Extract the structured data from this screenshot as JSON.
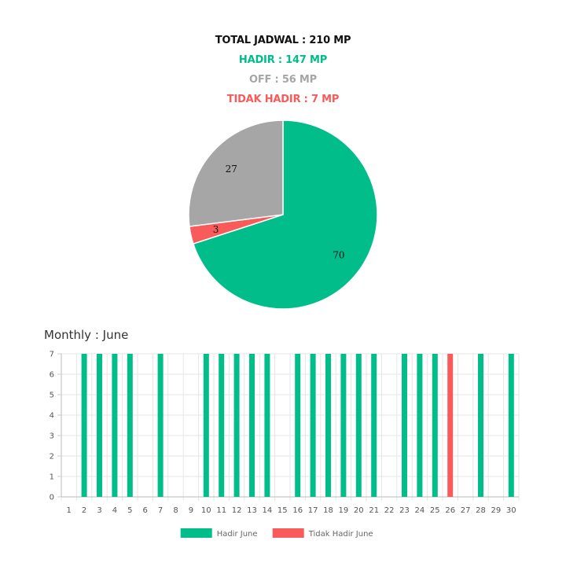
{
  "summary": {
    "total": "TOTAL JADWAL : 210 MP",
    "hadir": "HADIR : 147 MP",
    "off": "OFF : 56 MP",
    "tidak_hadir": "TIDAK HADIR : 7 MP"
  },
  "colors": {
    "hadir": "#00bd8a",
    "off": "#a6a6a6",
    "tidak_hadir": "#f95b5b"
  },
  "bar_title": "Monthly : June",
  "chart_data": [
    {
      "type": "pie",
      "start_angle_deg": 0,
      "slices": [
        {
          "label": "70",
          "value": 70,
          "color": "#00bd8a"
        },
        {
          "label": "3",
          "value": 3,
          "color": "#f95b5b"
        },
        {
          "label": "27",
          "value": 27,
          "color": "#a6a6a6"
        }
      ]
    },
    {
      "type": "bar",
      "title": "Monthly : June",
      "categories": [
        "1",
        "2",
        "3",
        "4",
        "5",
        "6",
        "7",
        "8",
        "9",
        "10",
        "11",
        "12",
        "13",
        "14",
        "15",
        "16",
        "17",
        "18",
        "19",
        "20",
        "21",
        "22",
        "23",
        "24",
        "25",
        "26",
        "27",
        "28",
        "29",
        "30"
      ],
      "ylim": [
        0,
        7
      ],
      "yticks": [
        0,
        1,
        2,
        3,
        4,
        5,
        6,
        7
      ],
      "grid": true,
      "legend_position": "bottom",
      "series": [
        {
          "name": "Hadir June",
          "color": "#00bd8a",
          "values": [
            0,
            7,
            7,
            7,
            7,
            0,
            7,
            0,
            0,
            7,
            7,
            7,
            7,
            7,
            0,
            7,
            7,
            7,
            7,
            7,
            7,
            0,
            7,
            7,
            7,
            0,
            0,
            7,
            0,
            7
          ]
        },
        {
          "name": "Tidak Hadir June",
          "color": "#f95b5b",
          "values": [
            0,
            0,
            0,
            0,
            0,
            0,
            0,
            0,
            0,
            0,
            0,
            0,
            0,
            0,
            0,
            0,
            0,
            0,
            0,
            0,
            0,
            0,
            0,
            0,
            0,
            7,
            0,
            0,
            0,
            0
          ]
        }
      ]
    }
  ]
}
